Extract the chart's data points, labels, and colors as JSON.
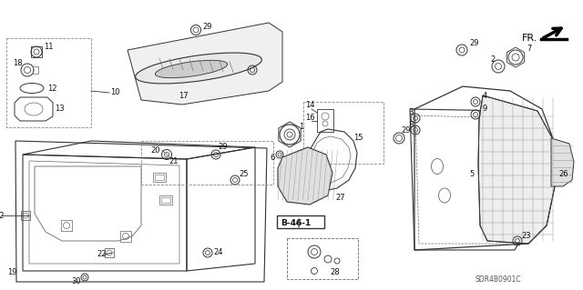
{
  "background_color": "#ffffff",
  "diagram_code": "SDR4B0901C",
  "fr_label": "FR.",
  "line_color": "#333333",
  "gray": "#666666",
  "light_gray": "#999999"
}
